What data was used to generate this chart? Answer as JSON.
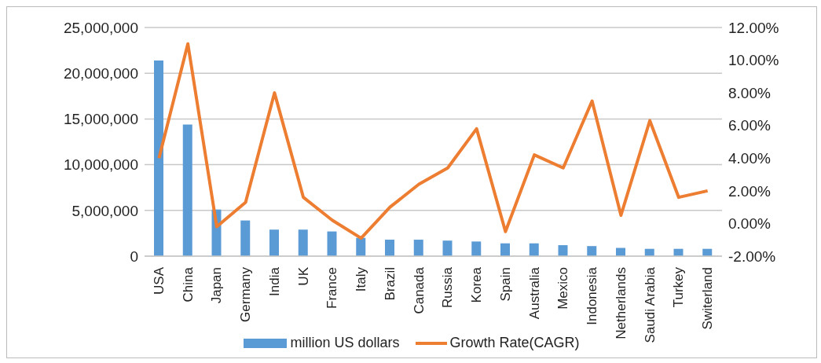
{
  "chart_data": {
    "type": "bar",
    "categories": [
      "USA",
      "China",
      "Japan",
      "Germany",
      "India",
      "UK",
      "France",
      "Italy",
      "Brazil",
      "Canada",
      "Russia",
      "Korea",
      "Spain",
      "Australia",
      "Mexico",
      "Indonesia",
      "Netherlands",
      "Saudi Arabia",
      "Turkey",
      "Switerland"
    ],
    "series": [
      {
        "name": "million US dollars",
        "color": "#5b9bd5",
        "values": [
          21400000,
          14400000,
          5100000,
          3900000,
          2900000,
          2900000,
          2700000,
          2000000,
          1800000,
          1800000,
          1700000,
          1600000,
          1400000,
          1400000,
          1200000,
          1100000,
          900000,
          800000,
          800000,
          800000
        ]
      },
      {
        "name": "Growth Rate(CAGR)",
        "type": "line",
        "axis": "y2",
        "color": "#ed7d31",
        "values": [
          4.0,
          11.0,
          -0.2,
          1.3,
          8.0,
          1.6,
          0.2,
          -0.9,
          1.0,
          2.4,
          3.4,
          5.8,
          -0.5,
          4.2,
          3.4,
          7.5,
          0.5,
          6.3,
          1.6,
          2.0
        ]
      }
    ],
    "ylim": [
      0,
      25000000
    ],
    "yticks": [
      0,
      {
        "value": 5000000,
        "label": "5,000,000"
      },
      {
        "value": 10000000,
        "label": "10,000,000"
      },
      {
        "value": 15000000,
        "label": "15,000,000"
      },
      {
        "value": 20000000,
        "label": "20,000,000"
      },
      {
        "value": 25000000,
        "label": "25,000,000"
      }
    ],
    "y2lim": [
      -2,
      12
    ],
    "y2ticks": [
      {
        "value": -2,
        "label": "-2.00%"
      },
      {
        "value": 0,
        "label": "0.00%"
      },
      {
        "value": 2,
        "label": "2.00%"
      },
      {
        "value": 4,
        "label": "4.00%"
      },
      {
        "value": 6,
        "label": "6.00%"
      },
      {
        "value": 8,
        "label": "8.00%"
      },
      {
        "value": 10,
        "label": "10.00%"
      },
      {
        "value": 12,
        "label": "12.00%"
      }
    ],
    "grid": "y",
    "legend": "bottom",
    "marker": "none",
    "line_style": "solid"
  }
}
